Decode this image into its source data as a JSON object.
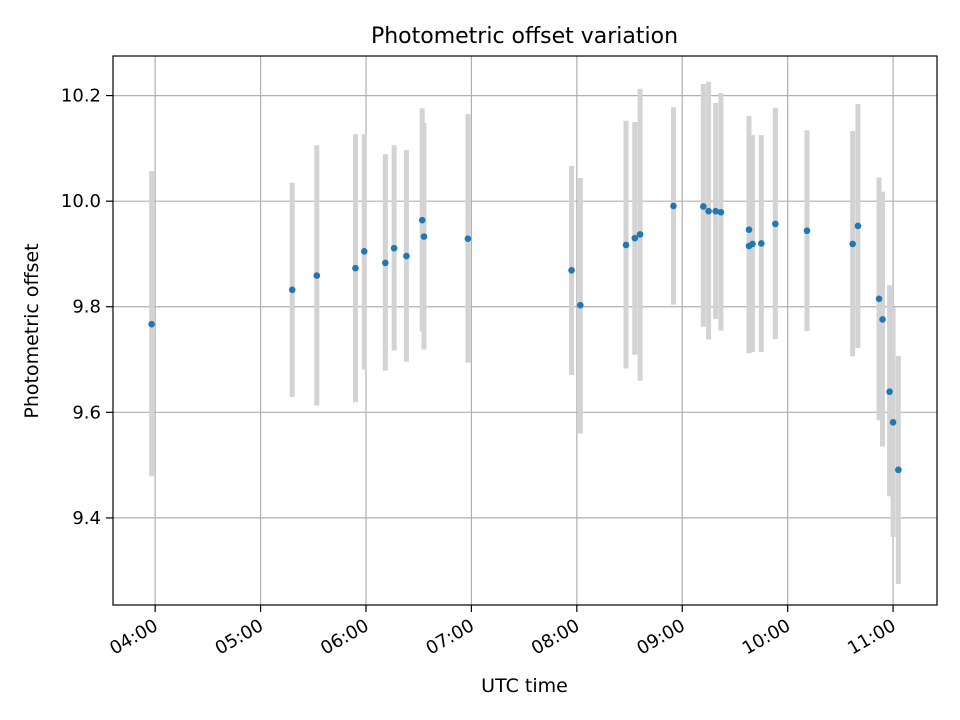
{
  "chart_data": {
    "type": "scatter",
    "title": "Photometric offset variation",
    "xlabel": "UTC time",
    "ylabel": "Photometric offset",
    "x_axis": "time",
    "xlim": [
      "03:36",
      "11:25"
    ],
    "ylim": [
      9.235,
      10.275
    ],
    "grid": true,
    "xticks": [
      "04:00",
      "05:00",
      "06:00",
      "07:00",
      "08:00",
      "09:00",
      "10:00",
      "11:00"
    ],
    "yticks": [
      9.4,
      9.6,
      9.8,
      10.0,
      10.2
    ],
    "ytick_labels": [
      "9.4",
      "9.6",
      "9.8",
      "10.0",
      "10.2"
    ],
    "colors": {
      "marker": "#1f77b4",
      "errorbar": "#d3d3d3",
      "grid": "#b0b0b0"
    },
    "series": [
      {
        "points": [
          {
            "x": "03:58",
            "y": 9.767,
            "lo": 9.479,
            "hi": 10.057
          },
          {
            "x": "05:18",
            "y": 9.832,
            "lo": 9.629,
            "hi": 10.035
          },
          {
            "x": "05:32",
            "y": 9.859,
            "lo": 9.613,
            "hi": 10.106
          },
          {
            "x": "05:54",
            "y": 9.873,
            "lo": 9.619,
            "hi": 10.127
          },
          {
            "x": "05:59",
            "y": 9.905,
            "lo": 9.681,
            "hi": 10.127
          },
          {
            "x": "06:11",
            "y": 9.883,
            "lo": 9.679,
            "hi": 10.089
          },
          {
            "x": "06:16",
            "y": 9.911,
            "lo": 9.717,
            "hi": 10.106
          },
          {
            "x": "06:23",
            "y": 9.896,
            "lo": 9.696,
            "hi": 10.097
          },
          {
            "x": "06:32",
            "y": 9.964,
            "lo": 9.753,
            "hi": 10.176
          },
          {
            "x": "06:33",
            "y": 9.933,
            "lo": 9.719,
            "hi": 10.148
          },
          {
            "x": "06:58",
            "y": 9.929,
            "lo": 9.694,
            "hi": 10.165
          },
          {
            "x": "07:57",
            "y": 9.869,
            "lo": 9.671,
            "hi": 10.067
          },
          {
            "x": "08:02",
            "y": 9.803,
            "lo": 9.56,
            "hi": 10.044
          },
          {
            "x": "08:28",
            "y": 9.917,
            "lo": 9.683,
            "hi": 10.152
          },
          {
            "x": "08:33",
            "y": 9.93,
            "lo": 9.709,
            "hi": 10.15
          },
          {
            "x": "08:36",
            "y": 9.937,
            "lo": 9.66,
            "hi": 10.213
          },
          {
            "x": "08:55",
            "y": 9.991,
            "lo": 9.804,
            "hi": 10.178
          },
          {
            "x": "09:12",
            "y": 9.99,
            "lo": 9.762,
            "hi": 10.222
          },
          {
            "x": "09:15",
            "y": 9.981,
            "lo": 9.738,
            "hi": 10.226
          },
          {
            "x": "09:19",
            "y": 9.981,
            "lo": 9.777,
            "hi": 10.186
          },
          {
            "x": "09:22",
            "y": 9.979,
            "lo": 9.755,
            "hi": 10.205
          },
          {
            "x": "09:38",
            "y": 9.946,
            "lo": 9.731,
            "hi": 10.161
          },
          {
            "x": "09:38",
            "y": 9.915,
            "lo": 9.712,
            "hi": 10.14
          },
          {
            "x": "09:40",
            "y": 9.919,
            "lo": 9.714,
            "hi": 10.125
          },
          {
            "x": "09:45",
            "y": 9.92,
            "lo": 9.714,
            "hi": 10.125
          },
          {
            "x": "09:53",
            "y": 9.957,
            "lo": 9.739,
            "hi": 10.177
          },
          {
            "x": "10:11",
            "y": 9.944,
            "lo": 9.754,
            "hi": 10.134
          },
          {
            "x": "10:37",
            "y": 9.919,
            "lo": 9.706,
            "hi": 10.133
          },
          {
            "x": "10:40",
            "y": 9.953,
            "lo": 9.722,
            "hi": 10.184
          },
          {
            "x": "10:52",
            "y": 9.815,
            "lo": 9.585,
            "hi": 10.045
          },
          {
            "x": "10:54",
            "y": 9.776,
            "lo": 9.535,
            "hi": 10.018
          },
          {
            "x": "10:58",
            "y": 9.639,
            "lo": 9.441,
            "hi": 9.841
          },
          {
            "x": "11:00",
            "y": 9.581,
            "lo": 9.364,
            "hi": 9.799
          },
          {
            "x": "11:03",
            "y": 9.491,
            "lo": 9.275,
            "hi": 9.707
          }
        ]
      }
    ]
  }
}
